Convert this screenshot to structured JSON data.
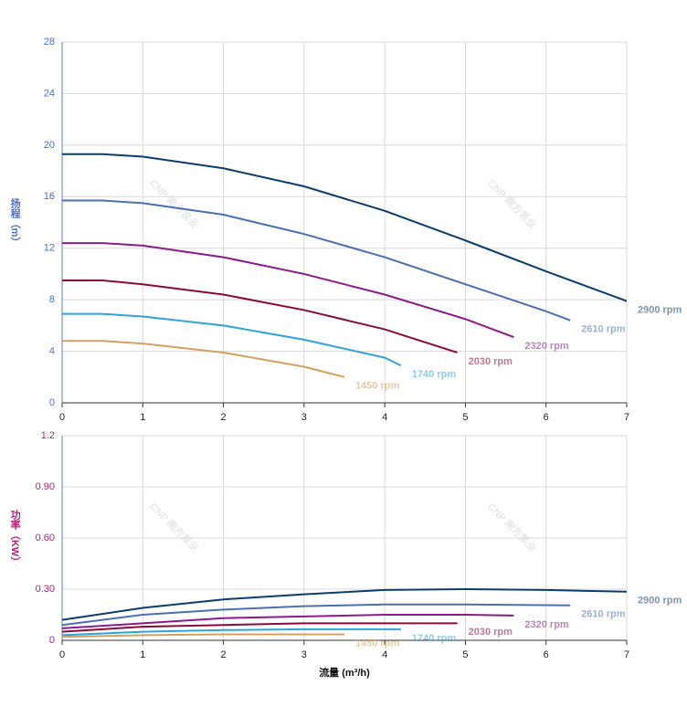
{
  "watermark": "CNP 南方泵业",
  "chart_data": [
    {
      "type": "line",
      "ylabel": "扬程（m）",
      "xlim": [
        0,
        7
      ],
      "xticks": [
        0,
        1,
        2,
        3,
        4,
        5,
        6,
        7
      ],
      "ylim": [
        0,
        28
      ],
      "yticks": [
        0,
        4,
        8,
        12,
        16,
        20,
        24,
        28
      ],
      "grid": true,
      "series": [
        {
          "name": "2900 rpm",
          "color": "#0b3d6b",
          "x": [
            0,
            0.5,
            1,
            2,
            3,
            4,
            5,
            6,
            7
          ],
          "values": [
            19.3,
            19.3,
            19.1,
            18.2,
            16.8,
            14.9,
            12.6,
            10.2,
            7.9
          ]
        },
        {
          "name": "2610 rpm",
          "color": "#4a6fb5",
          "x": [
            0,
            0.5,
            1,
            2,
            3,
            4,
            5,
            6,
            6.3
          ],
          "values": [
            15.7,
            15.7,
            15.5,
            14.6,
            13.1,
            11.3,
            9.2,
            7.1,
            6.4
          ]
        },
        {
          "name": "2320 rpm",
          "color": "#8b1a8b",
          "x": [
            0,
            0.5,
            1,
            2,
            3,
            4,
            5,
            5.6
          ],
          "values": [
            12.4,
            12.4,
            12.2,
            11.3,
            10.0,
            8.4,
            6.5,
            5.1
          ]
        },
        {
          "name": "2030 rpm",
          "color": "#8b0a3a",
          "x": [
            0,
            0.5,
            1,
            2,
            3,
            4,
            4.9
          ],
          "values": [
            9.5,
            9.5,
            9.2,
            8.4,
            7.2,
            5.7,
            3.9
          ]
        },
        {
          "name": "1740 rpm",
          "color": "#2fa3dc",
          "x": [
            0,
            0.5,
            1,
            2,
            3,
            4,
            4.2
          ],
          "values": [
            6.9,
            6.9,
            6.7,
            6.0,
            4.9,
            3.5,
            2.9
          ]
        },
        {
          "name": "1450 rpm",
          "color": "#d4a060",
          "x": [
            0,
            0.5,
            1,
            2,
            3,
            3.5
          ],
          "values": [
            4.8,
            4.8,
            4.6,
            3.9,
            2.8,
            2.0
          ]
        }
      ]
    },
    {
      "type": "line",
      "ylabel": "功率（KW）",
      "xlabel": "流量 (m³/h)",
      "xlim": [
        0,
        7
      ],
      "xticks": [
        0,
        1,
        2,
        3,
        4,
        5,
        6,
        7
      ],
      "ylim": [
        0,
        1.2
      ],
      "yticks": [
        0,
        {
          "value": 0.3,
          "label": "0.30"
        },
        {
          "value": 0.6,
          "label": "0.60"
        },
        {
          "value": 0.9,
          "label": "0.90"
        },
        1.2
      ],
      "grid": true,
      "series": [
        {
          "name": "2900 rpm",
          "color": "#0b3d6b",
          "x": [
            0,
            1,
            2,
            3,
            4,
            5,
            6,
            7
          ],
          "values": [
            0.12,
            0.19,
            0.24,
            0.27,
            0.295,
            0.3,
            0.295,
            0.285
          ]
        },
        {
          "name": "2610 rpm",
          "color": "#4a6fb5",
          "x": [
            0,
            1,
            2,
            3,
            4,
            5,
            6.3
          ],
          "values": [
            0.09,
            0.15,
            0.18,
            0.2,
            0.21,
            0.21,
            0.205
          ]
        },
        {
          "name": "2320 rpm",
          "color": "#8b1a8b",
          "x": [
            0,
            1,
            2,
            3,
            4,
            5,
            5.6
          ],
          "values": [
            0.07,
            0.1,
            0.13,
            0.14,
            0.15,
            0.15,
            0.145
          ]
        },
        {
          "name": "2030 rpm",
          "color": "#8b0a3a",
          "x": [
            0,
            1,
            2,
            3,
            4,
            4.9
          ],
          "values": [
            0.05,
            0.08,
            0.09,
            0.1,
            0.1,
            0.1
          ]
        },
        {
          "name": "1740 rpm",
          "color": "#2fa3dc",
          "x": [
            0,
            1,
            2,
            3,
            4.2
          ],
          "values": [
            0.03,
            0.05,
            0.06,
            0.065,
            0.065
          ]
        },
        {
          "name": "1450 rpm",
          "color": "#d4a060",
          "x": [
            0,
            1,
            2,
            3,
            3.5
          ],
          "values": [
            0.02,
            0.03,
            0.035,
            0.035,
            0.035
          ]
        }
      ]
    }
  ]
}
